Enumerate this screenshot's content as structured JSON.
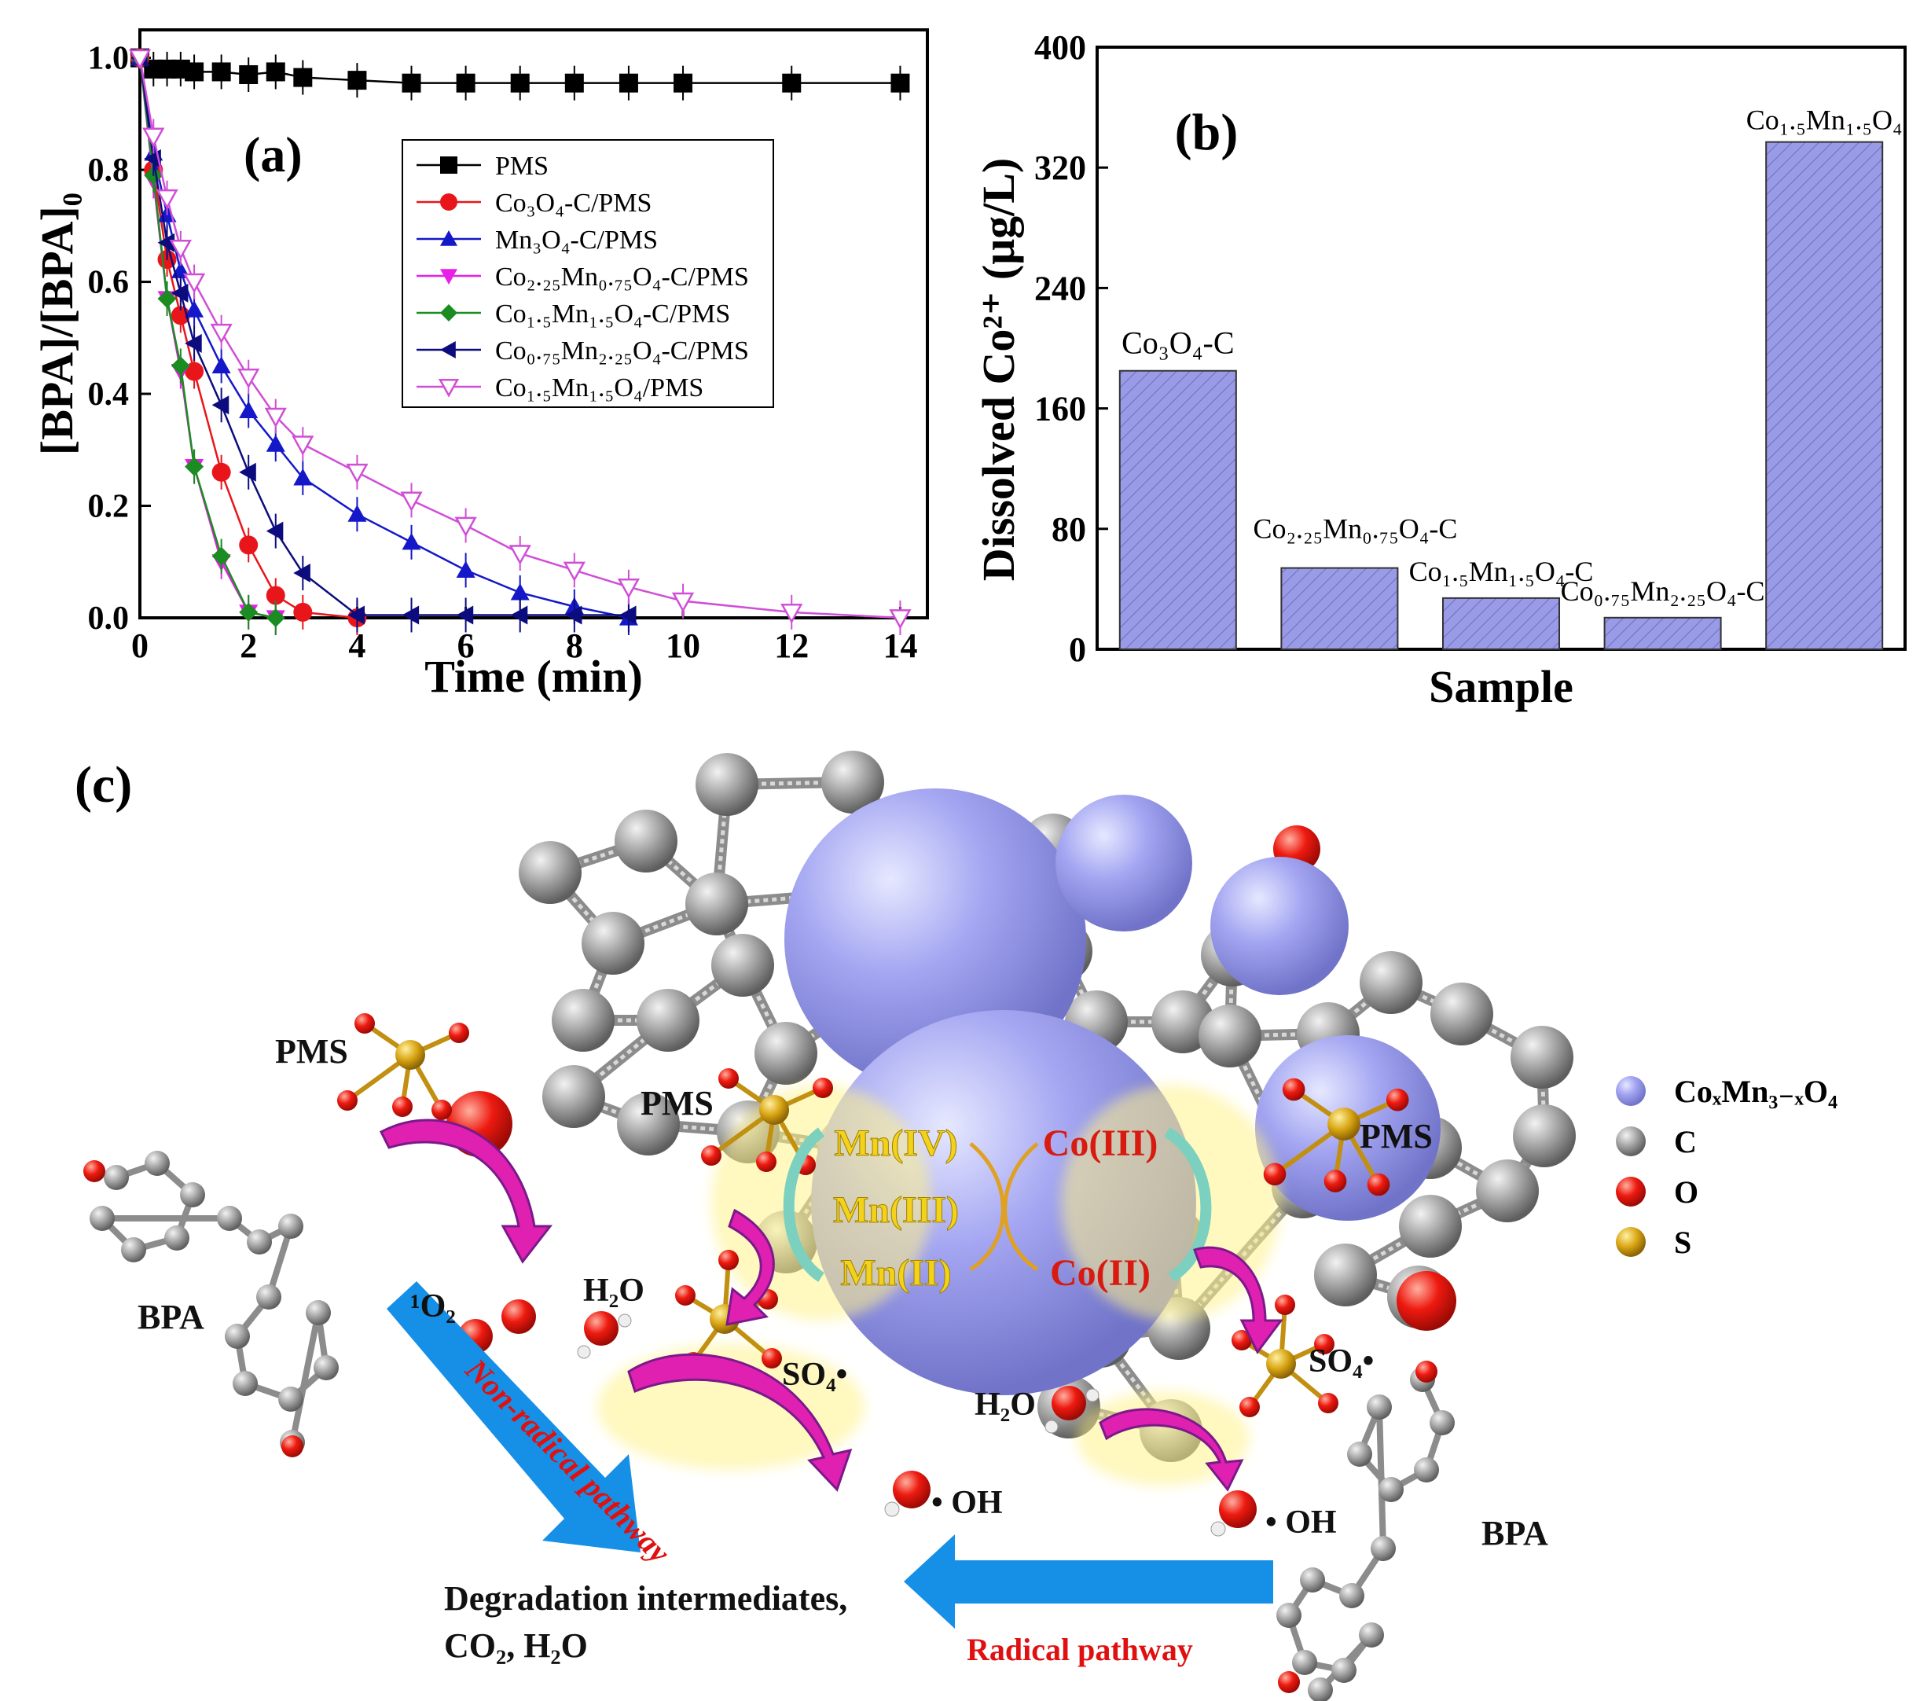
{
  "panel_labels": {
    "a": "(a)",
    "b": "(b)",
    "c": "(c)"
  },
  "chart_data": [
    {
      "panel": "(a)",
      "type": "line",
      "xlabel": "Time (min)",
      "ylabel": "[BPA]/[BPA]₀",
      "xlim": [
        0,
        14.5
      ],
      "ylim": [
        0,
        1.05
      ],
      "xticks": [
        0,
        2,
        4,
        6,
        8,
        10,
        12,
        14
      ],
      "yticks": [
        0.0,
        0.2,
        0.4,
        0.6,
        0.8,
        1.0
      ],
      "legend_position": "top-right",
      "series": [
        {
          "name": "PMS",
          "color": "#000000",
          "marker": "square-filled",
          "x": [
            0,
            0.25,
            0.5,
            0.75,
            1,
            1.5,
            2,
            2.5,
            3,
            4,
            5,
            6,
            7,
            8,
            9,
            10,
            12,
            14
          ],
          "y": [
            1.0,
            0.98,
            0.98,
            0.98,
            0.975,
            0.975,
            0.97,
            0.975,
            0.965,
            0.96,
            0.955,
            0.955,
            0.955,
            0.955,
            0.955,
            0.955,
            0.955,
            0.955
          ]
        },
        {
          "name": "Co₃O₄-C/PMS",
          "color": "#e8161b",
          "marker": "circle-filled",
          "x": [
            0,
            0.25,
            0.5,
            0.75,
            1,
            1.5,
            2,
            2.5,
            3,
            4
          ],
          "y": [
            1.0,
            0.8,
            0.64,
            0.54,
            0.44,
            0.26,
            0.13,
            0.04,
            0.01,
            0.0
          ]
        },
        {
          "name": "Mn₃O₄-C/PMS",
          "color": "#1518c8",
          "marker": "triangle-up-filled",
          "x": [
            0,
            0.25,
            0.5,
            0.75,
            1,
            1.5,
            2,
            2.5,
            3,
            4,
            5,
            6,
            7,
            8,
            9
          ],
          "y": [
            1.0,
            0.83,
            0.72,
            0.62,
            0.55,
            0.45,
            0.37,
            0.31,
            0.25,
            0.185,
            0.135,
            0.085,
            0.045,
            0.02,
            0.0
          ]
        },
        {
          "name": "Co₂.₂₅Mn₀.₇₅O₄-C/PMS",
          "color": "#e81fe8",
          "marker": "triangle-down-filled",
          "x": [
            0,
            0.25,
            0.5,
            0.75,
            1,
            1.5,
            2,
            2.5
          ],
          "y": [
            1.0,
            0.78,
            0.57,
            0.44,
            0.27,
            0.1,
            0.01,
            0.0
          ]
        },
        {
          "name": "Co₁.₅Mn₁.₅O₄-C/PMS",
          "color": "#1b8c22",
          "marker": "diamond-filled",
          "x": [
            0,
            0.25,
            0.5,
            0.75,
            1,
            1.5,
            2,
            2.5
          ],
          "y": [
            1.0,
            0.79,
            0.57,
            0.45,
            0.27,
            0.11,
            0.01,
            0.0
          ]
        },
        {
          "name": "Co₀.₇₅Mn₂.₂₅O₄-C/PMS",
          "color": "#0c0c7e",
          "marker": "triangle-left-filled",
          "x": [
            0,
            0.25,
            0.5,
            0.75,
            1,
            1.5,
            2,
            2.5,
            3,
            4,
            5,
            6,
            7,
            8,
            9
          ],
          "y": [
            1.0,
            0.82,
            0.67,
            0.58,
            0.49,
            0.38,
            0.26,
            0.155,
            0.08,
            0.005,
            0.005,
            0.005,
            0.005,
            0.005,
            0.005
          ]
        },
        {
          "name": "Co₁.₅Mn₁.₅O₄/PMS",
          "color": "#d04fd6",
          "marker": "triangle-down-open",
          "x": [
            0,
            0.25,
            0.5,
            0.75,
            1,
            1.5,
            2,
            2.5,
            3,
            4,
            5,
            6,
            7,
            8,
            9,
            10,
            12,
            14
          ],
          "y": [
            1.0,
            0.86,
            0.75,
            0.66,
            0.6,
            0.51,
            0.43,
            0.36,
            0.31,
            0.26,
            0.21,
            0.165,
            0.115,
            0.085,
            0.055,
            0.03,
            0.01,
            0.0
          ]
        }
      ]
    },
    {
      "panel": "(b)",
      "type": "bar",
      "xlabel": "Sample",
      "ylabel": "Dissolved Co²⁺ (μg/L)",
      "ylim": [
        0,
        400
      ],
      "yticks": [
        0,
        80,
        160,
        240,
        320,
        400
      ],
      "categories": [
        "Co₃O₄-C",
        "Co₂.₂₅Mn₀.₇₅O₄-C",
        "Co₁.₅Mn₁.₅O₄-C",
        "Co₀.₇₅Mn₂.₂₅O₄-C",
        "Co₁.₅Mn₁.₅O₄"
      ],
      "values": [
        185,
        54,
        34,
        21,
        337
      ],
      "bar_color": "#9a9be6"
    }
  ],
  "diagram": {
    "legend": [
      {
        "label": "CoₓMn₃₋ₓO₄",
        "color": "#9b9df0"
      },
      {
        "label": "C",
        "color": "#9a9a9a"
      },
      {
        "label": "O",
        "color": "#e8100e"
      },
      {
        "label": "S",
        "color": "#d4a00e"
      }
    ],
    "labels": {
      "pms_left": "PMS",
      "pms_center": "PMS",
      "pms_right": "PMS",
      "bpa_left": "BPA",
      "bpa_right": "BPA",
      "singlet_o2": "¹O₂",
      "h2o_left": "H₂O",
      "h2o_center": "H₂O",
      "so4_left": "SO₄•",
      "so4_right": "SO₄•",
      "oh_left": "• OH",
      "oh_right": "• OH",
      "mn4": "Mn(IV)",
      "mn3": "Mn(III)",
      "mn2": "Mn(II)",
      "co3": "Co(III)",
      "co2": "Co(II)",
      "non_radical": "Non-radical pathway",
      "radical": "Radical pathway",
      "products_line1": "Degradation intermediates,",
      "products_line2": "CO₂, H₂O"
    }
  }
}
